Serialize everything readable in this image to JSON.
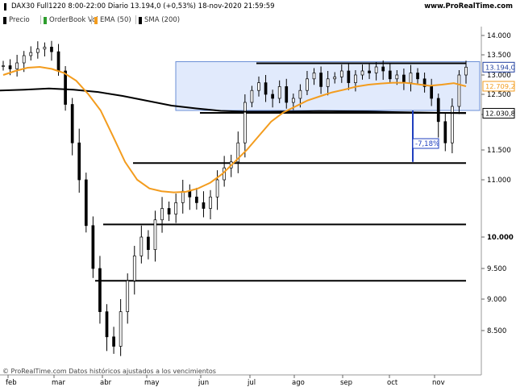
{
  "header": {
    "title": "DAX30 Full1220 8:00-22:00 Diario 13.194,0 (+0,53%) 18-nov-2020 21:59:59",
    "site": "www.ProRealTime.com"
  },
  "legend": [
    {
      "label": "Precio",
      "color": "#000000"
    },
    {
      "label": "OrderBook Vol",
      "color": "#2e9e2e"
    },
    {
      "label": "EMA (50)",
      "color": "#f39c1e"
    },
    {
      "label": "SMA (200)",
      "color": "#000000"
    }
  ],
  "footer": "© ProRealTime.com  Datos históricos ajustados a los vencimientos",
  "chart_data": {
    "type": "candlestick",
    "x_labels": [
      "feb",
      "mar",
      "abr",
      "may",
      "jun",
      "jul",
      "ago",
      "sep",
      "oct",
      "nov"
    ],
    "y_ticks": [
      "14.000",
      "13.500",
      "13.000",
      "12.500",
      "12.000",
      "11.500",
      "11.000",
      "10.000",
      "9.500",
      "9.000",
      "8.500"
    ],
    "ylim": [
      8000,
      14100
    ],
    "price_badges": [
      {
        "value": "13.194,0",
        "price": 13194,
        "color": "#1f3f9f",
        "bg": "#ffffff",
        "border": "#1f3f9f"
      },
      {
        "value": "12.709,2",
        "price": 12709,
        "color": "#f39c1e",
        "bg": "#ffffff",
        "border": "#f39c1e"
      },
      {
        "value": "12.030,8",
        "price": 12031,
        "color": "#000000",
        "bg": "#ffffff",
        "border": "#000000"
      }
    ],
    "horizontal_levels": [
      {
        "price": 13290,
        "from": "jul",
        "to": "nov-end"
      },
      {
        "price": 12040,
        "from": "jun",
        "to": "nov-end"
      },
      {
        "price": 11280,
        "from": "may",
        "to": "nov-end"
      },
      {
        "price": 10220,
        "from": "abr",
        "to": "nov-end"
      },
      {
        "price": 9300,
        "from": "abr",
        "to": "nov-end"
      }
    ],
    "range_box": {
      "top": 13330,
      "bottom": 12100,
      "from": "jun",
      "to": "nov-end"
    },
    "annotation": {
      "label": "-7,18%",
      "top": 12100,
      "bottom": 11300
    },
    "close_series": [
      13230,
      13150,
      13300,
      13480,
      13560,
      13650,
      13700,
      13580,
      13100,
      12250,
      11600,
      11000,
      10200,
      9500,
      8800,
      8400,
      8250,
      8800,
      9300,
      9700,
      10000,
      9800,
      10300,
      10500,
      10400,
      10600,
      10800,
      10700,
      10600,
      10500,
      10700,
      11000,
      11200,
      11300,
      11600,
      12300,
      12600,
      12800,
      12500,
      12400,
      12700,
      12300,
      12400,
      12600,
      12900,
      13050,
      12700,
      12900,
      12950,
      13100,
      12800,
      13000,
      13100,
      13050,
      13200,
      13100,
      12900,
      13000,
      12800,
      13050,
      12900,
      12700,
      12400,
      11900,
      11600,
      12200,
      13000,
      13194
    ],
    "ema50": [
      13000,
      13100,
      13180,
      13200,
      13150,
      13050,
      12850,
      12500,
      12100,
      11700,
      11300,
      11000,
      10850,
      10800,
      10780,
      10790,
      10850,
      10950,
      11100,
      11300,
      11500,
      11700,
      11900,
      12050,
      12200,
      12350,
      12450,
      12550,
      12620,
      12700,
      12750,
      12780,
      12800,
      12800,
      12760,
      12720,
      12750,
      12790,
      12709
    ],
    "sma200": [
      12600,
      12620,
      12650,
      12620,
      12560,
      12460,
      12340,
      12220,
      12150,
      12090,
      12070,
      12070,
      12075,
      12085,
      12080,
      12075,
      12060,
      12050,
      12040,
      12031
    ]
  }
}
